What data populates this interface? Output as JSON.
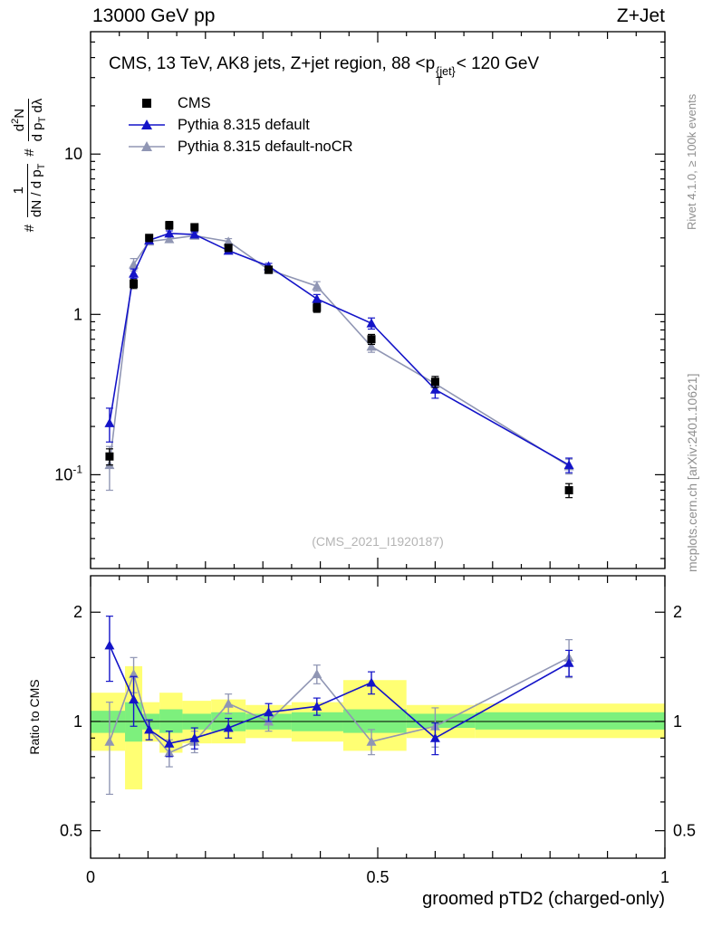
{
  "header": {
    "left": "13000 GeV pp",
    "right": "Z+Jet"
  },
  "credits": {
    "right_top": "Rivet 4.1.0, ≥ 100k events",
    "right_bottom": "mcplots.cern.ch [arXiv:2401.10621]"
  },
  "main": {
    "title_pre": "CMS, 13 TeV, AK8 jets, Z+jet region, 88 <p",
    "title_sup": "{jet}",
    "title_sub": "T",
    "title_post": "< 120 GeV",
    "watermark": "(CMS_2021_I1920187)",
    "ylabel": {
      "hash1": "#",
      "f1num": "1",
      "f1den_a": "dN / d p",
      "f1den_sub": "T",
      "hash2": "#",
      "f2num_a": "d",
      "f2num_sup": "2",
      "f2num_b": "N",
      "f2den_a": "d p",
      "f2den_sub": "T",
      "f2den_b": " dλ"
    }
  },
  "ratio": {
    "ylabel": "Ratio to CMS"
  },
  "xaxis": {
    "title": "groomed pTD2 (charged-only)"
  },
  "legend": [
    {
      "label": "CMS",
      "marker": "square",
      "color": "#000000",
      "line": false
    },
    {
      "label": "Pythia 8.315 default",
      "marker": "triangle",
      "color": "#1414c8",
      "line": true
    },
    {
      "label": "Pythia 8.315 default-noCR",
      "marker": "triangle",
      "color": "#9096b4",
      "line": true
    }
  ],
  "chart_data": {
    "type": "scatter",
    "title": "CMS, 13 TeV, AK8 jets, Z+jet region, 88 <pT{jet}< 120 GeV",
    "xlabel": "groomed pTD2 (charged-only)",
    "xlim": [
      0,
      1
    ],
    "x_ticks": [
      {
        "v": 0,
        "label": "0"
      },
      {
        "v": 0.5,
        "label": "0.5"
      },
      {
        "v": 1,
        "label": "1"
      }
    ],
    "main_panel": {
      "ylog": true,
      "ylim": [
        0.026,
        58
      ],
      "y_ticks": [
        {
          "v": 10,
          "base": "10",
          "sup": ""
        },
        {
          "v": 1,
          "base": "1",
          "sup": ""
        },
        {
          "v": 0.1,
          "base": "10",
          "sup": "-1"
        }
      ],
      "series": [
        {
          "name": "CMS",
          "marker": "square",
          "color": "#000000",
          "line": false,
          "x": [
            0.033,
            0.075,
            0.102,
            0.137,
            0.181,
            0.24,
            0.31,
            0.394,
            0.489,
            0.6,
            0.833
          ],
          "y": [
            0.13,
            1.55,
            3.0,
            3.6,
            3.5,
            2.6,
            1.9,
            1.1,
            0.7,
            0.38,
            0.08
          ],
          "yerr": [
            0.015,
            0.1,
            0.15,
            0.2,
            0.18,
            0.13,
            0.1,
            0.07,
            0.05,
            0.03,
            0.008
          ]
        },
        {
          "name": "Pythia 8.315 default",
          "marker": "triangle",
          "color": "#1414c8",
          "line": true,
          "x": [
            0.033,
            0.075,
            0.102,
            0.137,
            0.181,
            0.24,
            0.31,
            0.394,
            0.489,
            0.6,
            0.833
          ],
          "y": [
            0.21,
            1.8,
            2.9,
            3.2,
            3.15,
            2.5,
            2.0,
            1.25,
            0.88,
            0.34,
            0.115
          ],
          "yerr": [
            0.05,
            0.12,
            0.12,
            0.12,
            0.12,
            0.1,
            0.08,
            0.08,
            0.07,
            0.04,
            0.012
          ]
        },
        {
          "name": "Pythia 8.315 default-noCR",
          "marker": "triangle",
          "color": "#9096b4",
          "line": true,
          "x": [
            0.033,
            0.075,
            0.102,
            0.137,
            0.181,
            0.24,
            0.31,
            0.394,
            0.489,
            0.6,
            0.833
          ],
          "y": [
            0.115,
            2.05,
            2.85,
            2.95,
            3.1,
            2.85,
            1.9,
            1.5,
            0.63,
            0.37,
            0.113
          ],
          "yerr": [
            0.035,
            0.18,
            0.12,
            0.12,
            0.12,
            0.12,
            0.08,
            0.1,
            0.05,
            0.04,
            0.012
          ]
        }
      ]
    },
    "ratio_panel": {
      "ylog": true,
      "ylim": [
        0.42,
        2.52
      ],
      "reference": 1,
      "y_ticks": [
        {
          "v": 0.5,
          "label": "0.5"
        },
        {
          "v": 1,
          "label": "1"
        },
        {
          "v": 2,
          "label": "2"
        }
      ],
      "bands": {
        "yellow_color": "#ffff73",
        "green_color": "#7df07d",
        "bin_edges": [
          0,
          0.06,
          0.09,
          0.12,
          0.16,
          0.21,
          0.27,
          0.35,
          0.44,
          0.55,
          0.67,
          1.0
        ],
        "yellow_lo": [
          0.83,
          0.65,
          0.88,
          0.82,
          0.87,
          0.87,
          0.9,
          0.88,
          0.83,
          0.9,
          0.9
        ],
        "yellow_hi": [
          1.2,
          1.42,
          1.13,
          1.2,
          1.14,
          1.15,
          1.11,
          1.13,
          1.3,
          1.11,
          1.12
        ],
        "green_lo": [
          0.93,
          0.88,
          0.95,
          0.93,
          0.95,
          0.94,
          0.95,
          0.94,
          0.93,
          0.96,
          0.95
        ],
        "green_hi": [
          1.07,
          1.13,
          1.05,
          1.08,
          1.05,
          1.06,
          1.05,
          1.06,
          1.08,
          1.05,
          1.06
        ]
      },
      "series": [
        {
          "name": "Pythia 8.315 default",
          "marker": "triangle",
          "color": "#1414c8",
          "line": true,
          "x": [
            0.033,
            0.075,
            0.102,
            0.137,
            0.181,
            0.24,
            0.31,
            0.394,
            0.489,
            0.6,
            0.833
          ],
          "y": [
            1.62,
            1.15,
            0.95,
            0.87,
            0.9,
            0.96,
            1.06,
            1.1,
            1.28,
            0.9,
            1.45
          ],
          "yerr": [
            0.33,
            0.18,
            0.06,
            0.07,
            0.06,
            0.06,
            0.06,
            0.06,
            0.09,
            0.09,
            0.12
          ]
        },
        {
          "name": "Pythia 8.315 default-noCR",
          "marker": "triangle",
          "color": "#9096b4",
          "line": true,
          "x": [
            0.033,
            0.075,
            0.102,
            0.137,
            0.181,
            0.24,
            0.31,
            0.394,
            0.489,
            0.6,
            0.833
          ],
          "y": [
            0.88,
            1.35,
            0.95,
            0.82,
            0.88,
            1.12,
            1.0,
            1.35,
            0.88,
            0.97,
            1.5
          ],
          "yerr": [
            0.25,
            0.15,
            0.06,
            0.07,
            0.06,
            0.07,
            0.06,
            0.08,
            0.07,
            0.12,
            0.18
          ]
        }
      ]
    }
  }
}
